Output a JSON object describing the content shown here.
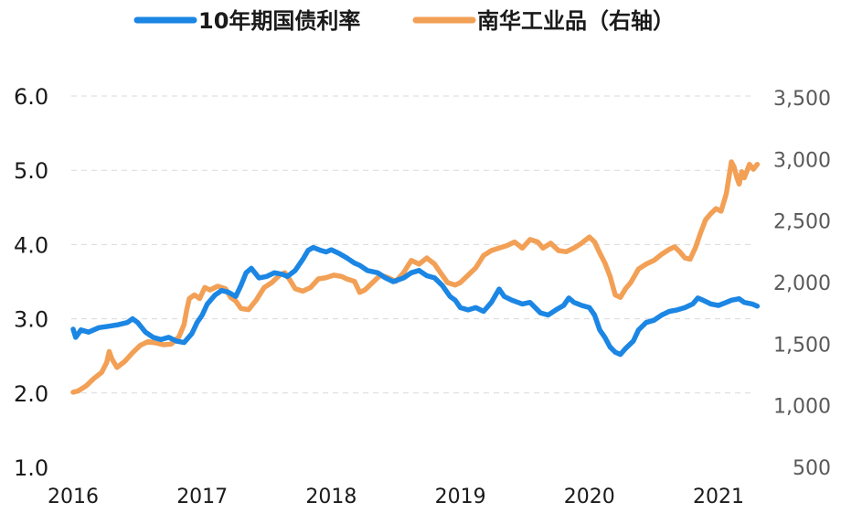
{
  "chart_data": {
    "type": "line",
    "title": "",
    "xlabel": "",
    "ylabel": "",
    "x_ticks": [
      "2016",
      "2017",
      "2018",
      "2019",
      "2020",
      "2021"
    ],
    "y_left": {
      "ylim": [
        1.0,
        6.0
      ],
      "ticks": [
        "1.0",
        "2.0",
        "3.0",
        "4.0",
        "5.0",
        "6.0"
      ]
    },
    "y_right": {
      "ylim": [
        500,
        3500
      ],
      "ticks": [
        "500",
        "1,000",
        "1,500",
        "2,000",
        "2,500",
        "3,000",
        "3,500"
      ]
    },
    "grid": true,
    "legend_position": "top-center",
    "series": [
      {
        "name": "10年期国债利率",
        "axis": "left",
        "color": "#1b86e3",
        "points": [
          [
            2016.0,
            2.86
          ],
          [
            2016.02,
            2.75
          ],
          [
            2016.06,
            2.85
          ],
          [
            2016.12,
            2.82
          ],
          [
            2016.2,
            2.88
          ],
          [
            2016.28,
            2.9
          ],
          [
            2016.35,
            2.92
          ],
          [
            2016.42,
            2.95
          ],
          [
            2016.46,
            3.0
          ],
          [
            2016.5,
            2.95
          ],
          [
            2016.56,
            2.82
          ],
          [
            2016.62,
            2.75
          ],
          [
            2016.68,
            2.72
          ],
          [
            2016.74,
            2.75
          ],
          [
            2016.8,
            2.7
          ],
          [
            2016.86,
            2.68
          ],
          [
            2016.92,
            2.8
          ],
          [
            2016.96,
            2.95
          ],
          [
            2017.0,
            3.05
          ],
          [
            2017.04,
            3.2
          ],
          [
            2017.1,
            3.32
          ],
          [
            2017.15,
            3.38
          ],
          [
            2017.2,
            3.36
          ],
          [
            2017.26,
            3.3
          ],
          [
            2017.3,
            3.45
          ],
          [
            2017.34,
            3.62
          ],
          [
            2017.38,
            3.68
          ],
          [
            2017.44,
            3.55
          ],
          [
            2017.5,
            3.57
          ],
          [
            2017.56,
            3.62
          ],
          [
            2017.62,
            3.6
          ],
          [
            2017.66,
            3.57
          ],
          [
            2017.72,
            3.65
          ],
          [
            2017.78,
            3.8
          ],
          [
            2017.82,
            3.92
          ],
          [
            2017.86,
            3.96
          ],
          [
            2017.92,
            3.92
          ],
          [
            2017.96,
            3.9
          ],
          [
            2018.0,
            3.93
          ],
          [
            2018.06,
            3.88
          ],
          [
            2018.12,
            3.82
          ],
          [
            2018.18,
            3.75
          ],
          [
            2018.22,
            3.72
          ],
          [
            2018.28,
            3.65
          ],
          [
            2018.36,
            3.62
          ],
          [
            2018.42,
            3.55
          ],
          [
            2018.48,
            3.5
          ],
          [
            2018.56,
            3.55
          ],
          [
            2018.62,
            3.62
          ],
          [
            2018.68,
            3.65
          ],
          [
            2018.74,
            3.58
          ],
          [
            2018.8,
            3.55
          ],
          [
            2018.86,
            3.45
          ],
          [
            2018.92,
            3.3
          ],
          [
            2018.96,
            3.25
          ],
          [
            2019.0,
            3.15
          ],
          [
            2019.06,
            3.12
          ],
          [
            2019.12,
            3.15
          ],
          [
            2019.18,
            3.1
          ],
          [
            2019.24,
            3.22
          ],
          [
            2019.3,
            3.4
          ],
          [
            2019.34,
            3.3
          ],
          [
            2019.4,
            3.25
          ],
          [
            2019.48,
            3.2
          ],
          [
            2019.54,
            3.22
          ],
          [
            2019.58,
            3.15
          ],
          [
            2019.62,
            3.08
          ],
          [
            2019.68,
            3.05
          ],
          [
            2019.74,
            3.12
          ],
          [
            2019.8,
            3.18
          ],
          [
            2019.84,
            3.28
          ],
          [
            2019.88,
            3.22
          ],
          [
            2019.94,
            3.18
          ],
          [
            2020.0,
            3.15
          ],
          [
            2020.04,
            3.05
          ],
          [
            2020.08,
            2.85
          ],
          [
            2020.12,
            2.75
          ],
          [
            2020.16,
            2.62
          ],
          [
            2020.2,
            2.55
          ],
          [
            2020.24,
            2.52
          ],
          [
            2020.28,
            2.6
          ],
          [
            2020.34,
            2.7
          ],
          [
            2020.38,
            2.85
          ],
          [
            2020.44,
            2.95
          ],
          [
            2020.5,
            2.98
          ],
          [
            2020.56,
            3.05
          ],
          [
            2020.62,
            3.1
          ],
          [
            2020.68,
            3.12
          ],
          [
            2020.74,
            3.15
          ],
          [
            2020.8,
            3.2
          ],
          [
            2020.84,
            3.28
          ],
          [
            2020.88,
            3.25
          ],
          [
            2020.94,
            3.2
          ],
          [
            2021.0,
            3.18
          ],
          [
            2021.06,
            3.22
          ],
          [
            2021.1,
            3.25
          ],
          [
            2021.16,
            3.27
          ],
          [
            2021.2,
            3.22
          ],
          [
            2021.26,
            3.2
          ],
          [
            2021.3,
            3.17
          ]
        ]
      },
      {
        "name": "南华工业品（右轴）",
        "axis": "right",
        "color": "#f2a056",
        "points": [
          [
            2016.0,
            1110
          ],
          [
            2016.04,
            1120
          ],
          [
            2016.1,
            1160
          ],
          [
            2016.16,
            1220
          ],
          [
            2016.22,
            1270
          ],
          [
            2016.26,
            1350
          ],
          [
            2016.28,
            1440
          ],
          [
            2016.3,
            1380
          ],
          [
            2016.34,
            1310
          ],
          [
            2016.4,
            1360
          ],
          [
            2016.46,
            1430
          ],
          [
            2016.52,
            1490
          ],
          [
            2016.58,
            1520
          ],
          [
            2016.64,
            1510
          ],
          [
            2016.7,
            1495
          ],
          [
            2016.76,
            1500
          ],
          [
            2016.82,
            1560
          ],
          [
            2016.86,
            1660
          ],
          [
            2016.88,
            1780
          ],
          [
            2016.9,
            1870
          ],
          [
            2016.94,
            1900
          ],
          [
            2016.98,
            1870
          ],
          [
            2017.02,
            1960
          ],
          [
            2017.06,
            1940
          ],
          [
            2017.12,
            1970
          ],
          [
            2017.18,
            1950
          ],
          [
            2017.22,
            1880
          ],
          [
            2017.26,
            1850
          ],
          [
            2017.3,
            1790
          ],
          [
            2017.36,
            1780
          ],
          [
            2017.42,
            1860
          ],
          [
            2017.48,
            1960
          ],
          [
            2017.54,
            2000
          ],
          [
            2017.6,
            2060
          ],
          [
            2017.64,
            2080
          ],
          [
            2017.68,
            2020
          ],
          [
            2017.72,
            1950
          ],
          [
            2017.78,
            1930
          ],
          [
            2017.84,
            1960
          ],
          [
            2017.9,
            2030
          ],
          [
            2017.96,
            2040
          ],
          [
            2018.02,
            2060
          ],
          [
            2018.08,
            2050
          ],
          [
            2018.12,
            2030
          ],
          [
            2018.18,
            2010
          ],
          [
            2018.22,
            1920
          ],
          [
            2018.26,
            1940
          ],
          [
            2018.32,
            2000
          ],
          [
            2018.38,
            2060
          ],
          [
            2018.44,
            2040
          ],
          [
            2018.5,
            2010
          ],
          [
            2018.56,
            2080
          ],
          [
            2018.62,
            2180
          ],
          [
            2018.68,
            2150
          ],
          [
            2018.74,
            2200
          ],
          [
            2018.8,
            2150
          ],
          [
            2018.84,
            2090
          ],
          [
            2018.9,
            2000
          ],
          [
            2018.96,
            1980
          ],
          [
            2019.0,
            2000
          ],
          [
            2019.06,
            2060
          ],
          [
            2019.12,
            2120
          ],
          [
            2019.18,
            2220
          ],
          [
            2019.24,
            2260
          ],
          [
            2019.3,
            2280
          ],
          [
            2019.36,
            2300
          ],
          [
            2019.42,
            2330
          ],
          [
            2019.48,
            2280
          ],
          [
            2019.54,
            2350
          ],
          [
            2019.6,
            2330
          ],
          [
            2019.64,
            2280
          ],
          [
            2019.7,
            2320
          ],
          [
            2019.76,
            2260
          ],
          [
            2019.82,
            2250
          ],
          [
            2019.88,
            2280
          ],
          [
            2019.94,
            2320
          ],
          [
            2020.0,
            2370
          ],
          [
            2020.04,
            2330
          ],
          [
            2020.08,
            2240
          ],
          [
            2020.12,
            2160
          ],
          [
            2020.16,
            2050
          ],
          [
            2020.2,
            1900
          ],
          [
            2020.24,
            1880
          ],
          [
            2020.28,
            1950
          ],
          [
            2020.32,
            2000
          ],
          [
            2020.38,
            2110
          ],
          [
            2020.44,
            2150
          ],
          [
            2020.5,
            2180
          ],
          [
            2020.56,
            2230
          ],
          [
            2020.62,
            2270
          ],
          [
            2020.66,
            2290
          ],
          [
            2020.7,
            2250
          ],
          [
            2020.74,
            2200
          ],
          [
            2020.78,
            2190
          ],
          [
            2020.82,
            2280
          ],
          [
            2020.86,
            2400
          ],
          [
            2020.9,
            2510
          ],
          [
            2020.94,
            2560
          ],
          [
            2020.98,
            2600
          ],
          [
            2021.02,
            2580
          ],
          [
            2021.06,
            2720
          ],
          [
            2021.1,
            2980
          ],
          [
            2021.12,
            2940
          ],
          [
            2021.14,
            2860
          ],
          [
            2021.16,
            2800
          ],
          [
            2021.18,
            2900
          ],
          [
            2021.2,
            2850
          ],
          [
            2021.24,
            2960
          ],
          [
            2021.27,
            2920
          ],
          [
            2021.3,
            2960
          ]
        ]
      }
    ]
  }
}
